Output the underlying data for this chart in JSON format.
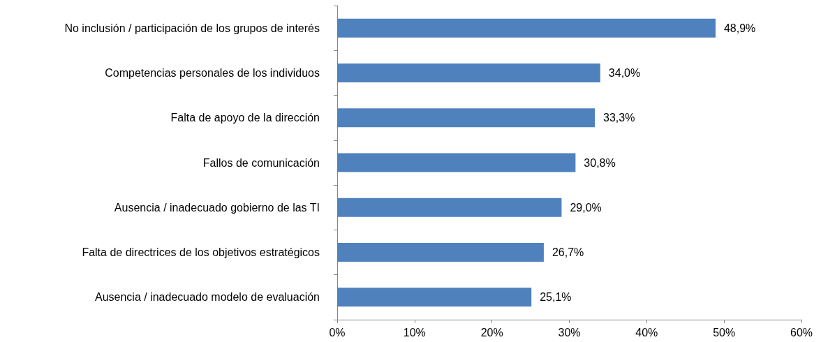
{
  "chart_data": {
    "type": "bar",
    "orientation": "horizontal",
    "categories": [
      "No inclusión / participación de los grupos de interés",
      "Competencias personales de los individuos",
      "Falta de apoyo de la dirección",
      "Fallos de comunicación",
      "Ausencia / inadecuado gobierno de las TI",
      "Falta de directrices de los objetivos estratégicos",
      "Ausencia / inadecuado modelo de evaluación"
    ],
    "values": [
      48.9,
      34.0,
      33.3,
      30.8,
      29.0,
      26.7,
      25.1
    ],
    "value_labels": [
      "48,9%",
      "34,0%",
      "33,3%",
      "30,8%",
      "29,0%",
      "26,7%",
      "25,1%"
    ],
    "color": "#4f81bd",
    "xlim": [
      0,
      60
    ],
    "xticks": [
      {
        "value": 0,
        "label": "0%"
      },
      {
        "value": 10,
        "label": "10%"
      },
      {
        "value": 20,
        "label": "20%"
      },
      {
        "value": 30,
        "label": "30%"
      },
      {
        "value": 40,
        "label": "40%"
      },
      {
        "value": 50,
        "label": "50%"
      },
      {
        "value": 60,
        "label": "60%"
      }
    ],
    "data_labels": false
  }
}
